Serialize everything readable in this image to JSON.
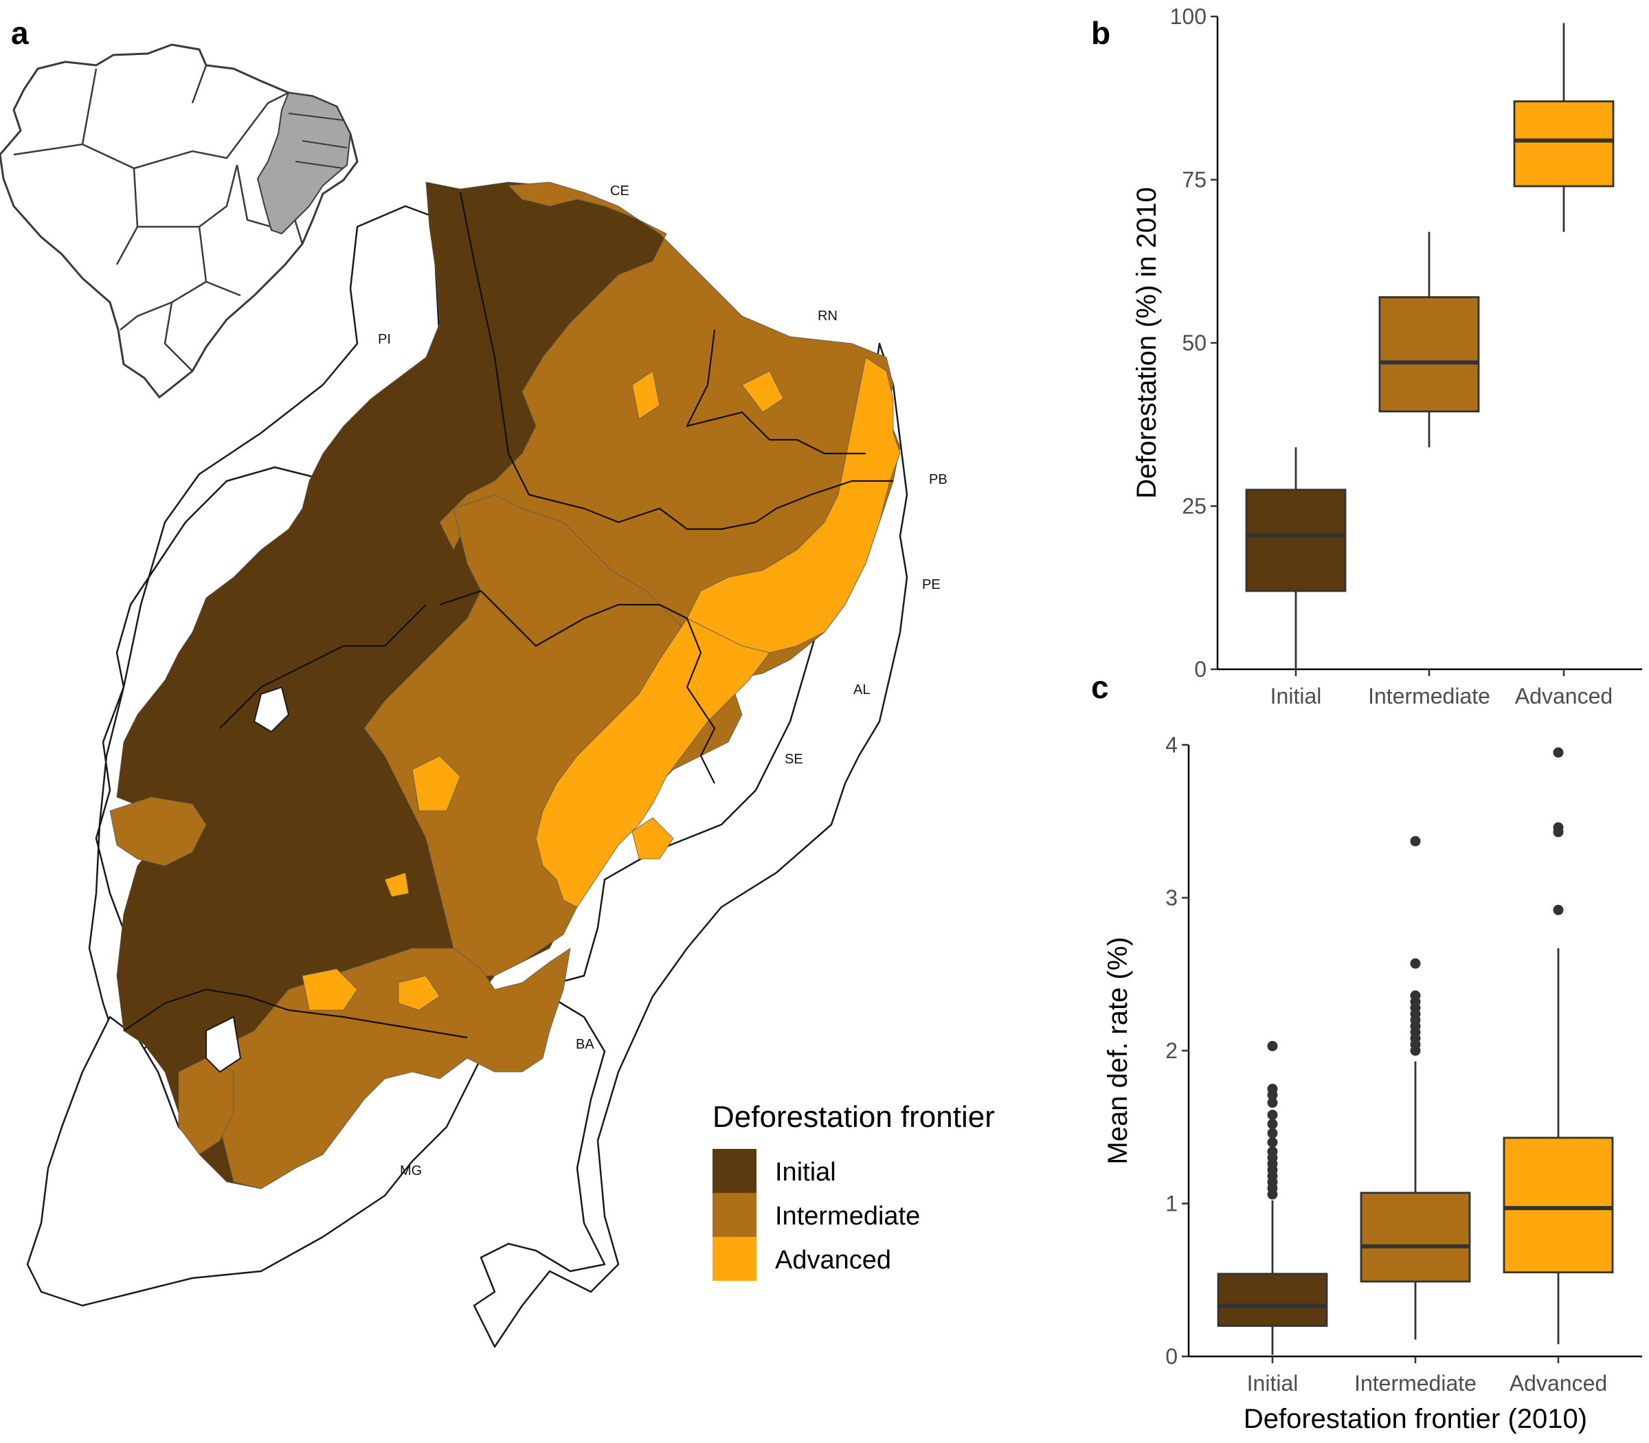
{
  "panels": {
    "a": "a",
    "b": "b",
    "c": "c"
  },
  "colors": {
    "initial": "#5c3a10",
    "intermediate": "#ad6f17",
    "advanced": "#ffa70c",
    "inset_region": "#a6a6a6"
  },
  "map": {
    "state_labels": [
      "CE",
      "RN",
      "PI",
      "PB",
      "PE",
      "AL",
      "SE",
      "BA",
      "MG"
    ],
    "legend": {
      "title": "Deforestation frontier",
      "items": [
        {
          "label": "Initial",
          "color": "#5c3a10"
        },
        {
          "label": "Intermediate",
          "color": "#ad6f17"
        },
        {
          "label": "Advanced",
          "color": "#ffa70c"
        }
      ]
    }
  },
  "chart_data": [
    {
      "type": "boxplot",
      "panel": "b",
      "categories": [
        "Initial",
        "Intermediate",
        "Advanced"
      ],
      "ylabel": "Deforestation (%) in 2010",
      "ylim": [
        0,
        100
      ],
      "yticks": [
        0,
        25,
        50,
        75,
        100
      ],
      "boxes": [
        {
          "category": "Initial",
          "min": 0,
          "q1": 12,
          "median": 20.5,
          "q3": 27.5,
          "max": 34
        },
        {
          "category": "Intermediate",
          "min": 34,
          "q1": 39.5,
          "median": 47,
          "q3": 57,
          "max": 67
        },
        {
          "category": "Advanced",
          "min": 67,
          "q1": 74,
          "median": 81,
          "q3": 87,
          "max": 99
        }
      ]
    },
    {
      "type": "boxplot",
      "panel": "c",
      "categories": [
        "Initial",
        "Intermediate",
        "Advanced"
      ],
      "xlabel": "Deforestation frontier (2010)",
      "ylabel": "Mean def. rate (%)",
      "ylim": [
        0,
        4
      ],
      "yticks": [
        0,
        1,
        2,
        3,
        4
      ],
      "boxes": [
        {
          "category": "Initial",
          "min": 0.01,
          "q1": 0.2,
          "median": 0.33,
          "q3": 0.54,
          "max": 1.02,
          "outliers": [
            1.06,
            1.1,
            1.14,
            1.18,
            1.22,
            1.26,
            1.3,
            1.34,
            1.4,
            1.46,
            1.52,
            1.58,
            1.66,
            1.71,
            1.75,
            2.03
          ]
        },
        {
          "category": "Intermediate",
          "min": 0.11,
          "q1": 0.49,
          "median": 0.72,
          "q3": 1.07,
          "max": 1.93,
          "outliers": [
            2.0,
            2.04,
            2.08,
            2.12,
            2.16,
            2.2,
            2.24,
            2.28,
            2.32,
            2.36,
            2.57,
            3.37
          ]
        },
        {
          "category": "Advanced",
          "min": 0.08,
          "q1": 0.55,
          "median": 0.97,
          "q3": 1.43,
          "max": 2.67,
          "outliers": [
            2.92,
            3.43,
            3.46,
            3.95
          ]
        }
      ]
    }
  ]
}
